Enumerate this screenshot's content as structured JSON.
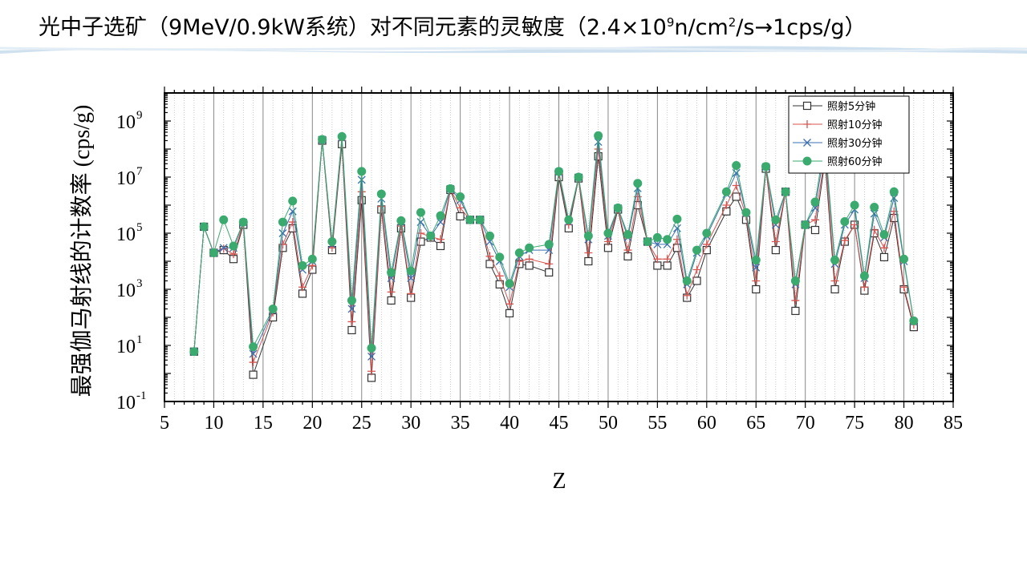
{
  "slide": {
    "title_main": "光中子选矿（9MeV/0.9kW系统）对不同元素的灵敏度（2.4×10",
    "title_sup": "9",
    "title_tail": "n/cm",
    "title_sup2": "2",
    "title_end": "/s→1cps/g）"
  },
  "chart_data": {
    "type": "line",
    "xlabel": "Z",
    "ylabel": "最强伽马射线的计数率 (cps/g)",
    "xlim": [
      5,
      85
    ],
    "x_ticks": [
      5,
      10,
      15,
      20,
      25,
      30,
      35,
      40,
      45,
      50,
      55,
      60,
      65,
      70,
      75,
      80,
      85
    ],
    "y_scale": "log",
    "ylim": [
      0.1,
      10000000000
    ],
    "y_ticks": [
      {
        "base": "10",
        "exp": "-1",
        "value": 0.1
      },
      {
        "base": "10",
        "exp": "1",
        "value": 10
      },
      {
        "base": "10",
        "exp": "3",
        "value": 1000
      },
      {
        "base": "10",
        "exp": "5",
        "value": 100000
      },
      {
        "base": "10",
        "exp": "7",
        "value": 10000000
      },
      {
        "base": "10",
        "exp": "9",
        "value": 1000000000
      }
    ],
    "grid": true,
    "legend_position": "top-right",
    "x": [
      8,
      9,
      10,
      11,
      12,
      13,
      14,
      16,
      17,
      18,
      19,
      20,
      21,
      22,
      23,
      24,
      25,
      26,
      27,
      28,
      29,
      30,
      31,
      32,
      33,
      34,
      35,
      36,
      37,
      38,
      39,
      40,
      41,
      42,
      44,
      45,
      46,
      47,
      48,
      49,
      50,
      51,
      52,
      53,
      54,
      55,
      56,
      57,
      58,
      59,
      60,
      62,
      63,
      64,
      65,
      66,
      67,
      68,
      69,
      70,
      71,
      72,
      73,
      74,
      75,
      76,
      77,
      78,
      79,
      80,
      81
    ],
    "series": [
      {
        "name": "照射5分钟",
        "color": "#333333",
        "marker": "square",
        "values": [
          6,
          170000,
          20000,
          25000,
          12000,
          200000,
          0.9,
          100,
          30000,
          150000,
          700,
          5000,
          200000000,
          25000,
          150000000,
          35,
          1500000,
          0.7,
          700000,
          400,
          150000,
          500,
          50000,
          70000,
          35000,
          3500000,
          400000,
          300000,
          300000,
          8000,
          1500,
          140,
          8000,
          7000,
          4000,
          10000000,
          150000,
          9000000,
          10000,
          55000000,
          30000,
          700000,
          15000,
          1000000,
          50000,
          7000,
          7000,
          30000,
          500,
          2000,
          25000,
          600000,
          2000000,
          300000,
          1000,
          20000000,
          25000,
          3000000,
          170,
          200000,
          130000,
          40000000,
          1000,
          50000,
          200000,
          900,
          100000,
          14000,
          350000,
          1000,
          45
        ]
      },
      {
        "name": "照射10分钟",
        "color": "#d9534f",
        "marker": "plus",
        "values": [
          6,
          170000,
          20000,
          28000,
          18000,
          220000,
          2.5,
          150,
          40000,
          250000,
          1200,
          7000,
          210000000,
          30000,
          200000000,
          70,
          3000000,
          1.2,
          900000,
          800,
          180000,
          700,
          100000,
          75000,
          60000,
          3700000,
          800000,
          300000,
          300000,
          15000,
          3000,
          300,
          10000,
          12000,
          8000,
          13000000,
          200000,
          9500000,
          20000,
          100000000,
          50000,
          750000,
          25000,
          2000000,
          50000,
          12000,
          12000,
          60000,
          600,
          5000,
          40000,
          1000000,
          5000000,
          400000,
          2000,
          21000000,
          50000,
          3000000,
          400,
          200000,
          300000,
          60000000,
          2000,
          55000,
          200000,
          1200,
          130000,
          30000,
          600000,
          1200,
          55
        ]
      },
      {
        "name": "照射30分钟",
        "color": "#3a6fb0",
        "marker": "cross",
        "values": [
          6,
          170000,
          20000,
          30000,
          30000,
          240000,
          5,
          180,
          100000,
          600000,
          5000,
          10000,
          215000000,
          40000,
          250000000,
          200,
          8000000,
          4,
          1700000,
          2500,
          250000,
          2500,
          250000,
          78000,
          250000,
          3800000,
          1500000,
          300000,
          300000,
          50000,
          10000,
          1200,
          15000,
          25000,
          25000,
          15000000,
          250000,
          9800000,
          60000,
          180000000,
          80000,
          780000,
          70000,
          4000000,
          50000,
          40000,
          40000,
          150000,
          1500,
          20000,
          80000,
          2500000,
          14000000,
          500000,
          6000,
          23000000,
          200000,
          3000000,
          1500,
          200000,
          800000,
          120000000,
          8000,
          200000,
          700000,
          2500,
          500000,
          70000,
          1800000,
          10000,
          70
        ]
      },
      {
        "name": "照射60分钟",
        "color": "#3aaa6e",
        "marker": "circle",
        "values": [
          6,
          170000,
          20000,
          300000,
          35000,
          250000,
          9,
          200,
          250000,
          1400000,
          7000,
          12000,
          220000000,
          50000,
          280000000,
          400,
          16000000,
          8,
          2500000,
          4000,
          280000,
          4500,
          550000,
          80000,
          420000,
          3900000,
          2000000,
          300000,
          300000,
          80000,
          14000,
          1600,
          20000,
          30000,
          40000,
          16000000,
          300000,
          10000000,
          80000,
          300000000,
          100000,
          800000,
          90000,
          6000000,
          50000,
          70000,
          60000,
          320000,
          2000,
          25000,
          100000,
          3000000,
          26000000,
          550000,
          11000,
          24000000,
          300000,
          3000000,
          2000,
          200000,
          1300000,
          200000000,
          11000,
          260000,
          1000000,
          3000,
          850000,
          90000,
          3000000,
          12000,
          75
        ]
      }
    ]
  }
}
